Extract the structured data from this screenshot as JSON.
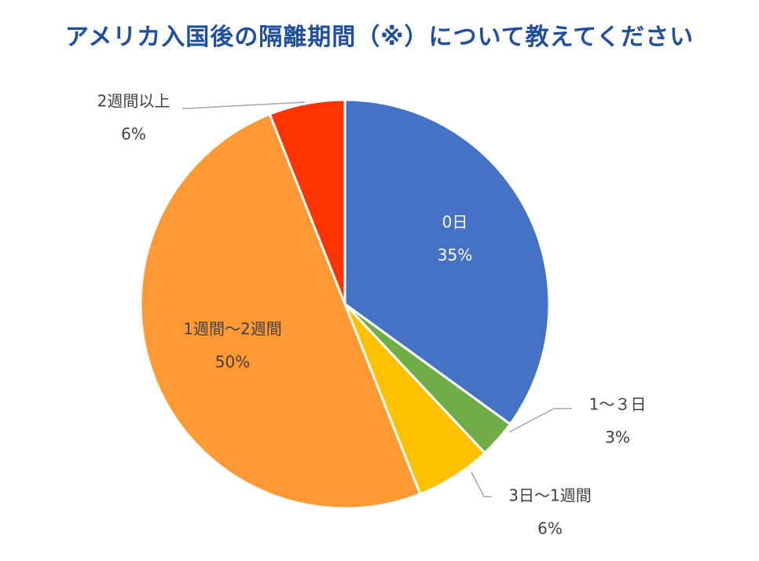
{
  "chart_data": {
    "type": "pie",
    "title": "アメリカ入国後の隔離期間（※）について教えてください",
    "slices": [
      {
        "label": "0日",
        "value": 35,
        "value_label": "35%",
        "color": "#4472c4"
      },
      {
        "label": "1～３日",
        "value": 3,
        "value_label": "3%",
        "color": "#70ad47"
      },
      {
        "label": "3日～1週間",
        "value": 6,
        "value_label": "6%",
        "color": "#ffc000"
      },
      {
        "label": "1週間～2週間",
        "value": 50,
        "value_label": "50%",
        "color": "#ff9933"
      },
      {
        "label": "2週間以上",
        "value": 6,
        "value_label": "6%",
        "color": "#ff3300"
      }
    ]
  }
}
